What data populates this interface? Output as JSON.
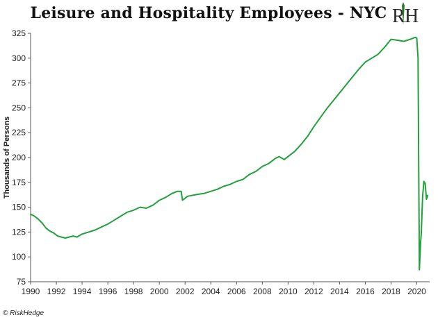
{
  "credit": "© RiskHedge",
  "logo_letters": "RH",
  "chart_data": {
    "type": "line",
    "title": "Leisure and Hospitality Employees - NYC",
    "xlabel": "",
    "ylabel": "Thousands of Persons",
    "xlim": [
      1990,
      2021
    ],
    "ylim": [
      75,
      325
    ],
    "xticks": [
      1990,
      1992,
      1994,
      1996,
      1998,
      2000,
      2002,
      2004,
      2006,
      2008,
      2010,
      2012,
      2014,
      2016,
      2018,
      2020
    ],
    "yticks": [
      75,
      100,
      125,
      150,
      175,
      200,
      225,
      250,
      275,
      300,
      325
    ],
    "grid": false,
    "legend": "none",
    "line_color": "#22a03c",
    "series": [
      {
        "x": [
          1990.0,
          1990.3,
          1990.6,
          1990.9,
          1991.2,
          1991.5,
          1991.8,
          1992.1,
          1992.4,
          1992.7,
          1993.0,
          1993.3,
          1993.6,
          1994.0,
          1994.5,
          1995.0,
          1995.5,
          1996.0,
          1996.5,
          1997.0,
          1997.5,
          1998.0,
          1998.5,
          1999.0,
          1999.5,
          2000.0,
          2000.5,
          2001.0,
          2001.4,
          2001.7,
          2001.8,
          2001.9,
          2002.2,
          2002.6,
          2003.0,
          2003.5,
          2004.0,
          2004.5,
          2005.0,
          2005.5,
          2006.0,
          2006.5,
          2007.0,
          2007.5,
          2008.0,
          2008.5,
          2009.0,
          2009.3,
          2009.7,
          2010.0,
          2010.5,
          2011.0,
          2011.5,
          2012.0,
          2012.5,
          2013.0,
          2013.5,
          2014.0,
          2014.5,
          2015.0,
          2015.5,
          2016.0,
          2016.5,
          2017.0,
          2017.5,
          2018.0,
          2018.5,
          2019.0,
          2019.5,
          2019.9,
          2020.0,
          2020.1,
          2020.2,
          2020.3,
          2020.35,
          2020.45,
          2020.55,
          2020.65,
          2020.75,
          2020.85
        ],
        "y": [
          143,
          141,
          138,
          134,
          129,
          126,
          124,
          121,
          120,
          119,
          120,
          121,
          120,
          123,
          125,
          127,
          130,
          133,
          137,
          141,
          145,
          147,
          150,
          149,
          152,
          157,
          160,
          164,
          166,
          166,
          157,
          158,
          161,
          162,
          163,
          164,
          166,
          168,
          171,
          173,
          176,
          178,
          183,
          186,
          191,
          194,
          199,
          201,
          198,
          201,
          206,
          213,
          221,
          231,
          240,
          249,
          257,
          265,
          273,
          281,
          289,
          296,
          300,
          304,
          311,
          319,
          318,
          317,
          319,
          321,
          320,
          300,
          87,
          115,
          124,
          160,
          176,
          174,
          158,
          162
        ]
      }
    ]
  }
}
